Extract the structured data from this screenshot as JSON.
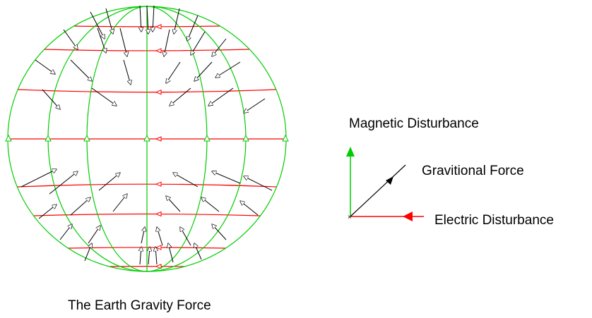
{
  "caption": "The Earth Gravity Force",
  "legend": {
    "magnetic_label": "Magnetic Disturbance",
    "gravity_label": "Gravitional Force",
    "electric_label": "Electric Disturbance"
  },
  "colors": {
    "meridian": "#00cc00",
    "parallel": "#ff0000",
    "arrow": "#000000",
    "magnetic_arrow": "#00cc00",
    "electric_arrow": "#ff0000"
  }
}
